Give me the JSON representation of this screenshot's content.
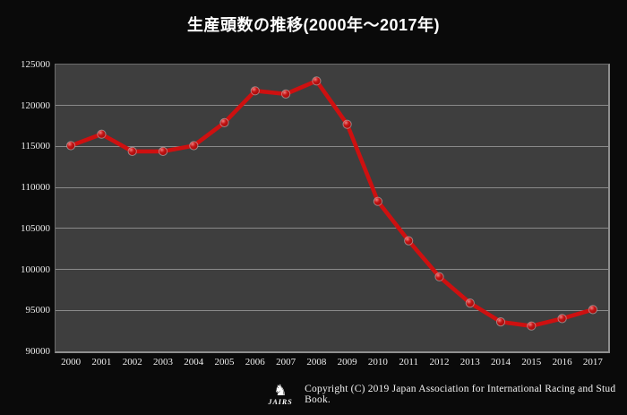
{
  "title": "生産頭数の推移(2000年～2017年)",
  "footer": {
    "logo_text": "JAIRS",
    "horse_icon": "♞",
    "copyright": "Copyright (C) 2019 Japan Association for International Racing and Stud Book."
  },
  "colors": {
    "background": "#0a0a0a",
    "plot_background": "#3e3e3e",
    "gridline": "#8a8a8a",
    "line": "#ce1010",
    "marker_fill": "#c41414",
    "marker_highlight": "#ef8080",
    "marker_dark": "#9c0a0a",
    "marker_ring": "#c9c9c9",
    "text": "#ededed"
  },
  "chart_data": {
    "type": "line",
    "title": "生産頭数の推移(2000年～2017年)",
    "categories": [
      "2000",
      "2001",
      "2002",
      "2003",
      "2004",
      "2005",
      "2006",
      "2007",
      "2008",
      "2009",
      "2010",
      "2011",
      "2012",
      "2013",
      "2014",
      "2015",
      "2016",
      "2017"
    ],
    "values": [
      115100,
      116500,
      114400,
      114400,
      115100,
      117900,
      121800,
      121400,
      123000,
      117700,
      108300,
      103500,
      99100,
      95900,
      93600,
      93100,
      94000,
      95100
    ],
    "series_name": "生産頭数",
    "xlabel": "",
    "ylabel": "",
    "ylim": [
      90000,
      125000
    ],
    "yticks": [
      90000,
      95000,
      100000,
      105000,
      110000,
      115000,
      120000,
      125000
    ],
    "grid": "horizontal",
    "legend": "none"
  }
}
